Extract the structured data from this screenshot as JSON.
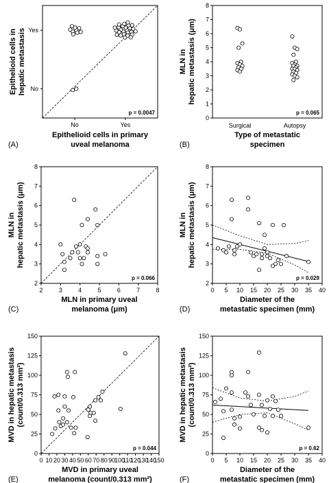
{
  "chart_data": [
    {
      "type": "scatter",
      "panel_label": "(A)",
      "xlabel": [
        "Epithelioid cells in primary",
        "uveal melanoma"
      ],
      "ylabel": [
        "Epithelioid cells in",
        "hepatic metastasis"
      ],
      "x_categories": [
        "No",
        "Yes"
      ],
      "y_categories": [
        "No",
        "Yes"
      ],
      "p_value": "p = 0.0047",
      "identity_line": true,
      "points": [
        {
          "x": "No",
          "y": "Yes",
          "count": 9
        },
        {
          "x": "No",
          "y": "No",
          "count": 2
        },
        {
          "x": "Yes",
          "y": "Yes",
          "count": 26
        }
      ]
    },
    {
      "type": "scatter",
      "panel_label": "(B)",
      "xlabel": [
        "Type of metastatic",
        "specimen"
      ],
      "ylabel": [
        "MLN in",
        "hepatic metastasis (μm)"
      ],
      "categories": [
        "Surgical",
        "Autopsy"
      ],
      "ylim": [
        0,
        8
      ],
      "yticks": [
        0,
        1,
        2,
        3,
        4,
        5,
        6,
        7,
        8
      ],
      "p_value": "p = 0.065",
      "series": [
        {
          "category": "Surgical",
          "values": [
            6.4,
            6.3,
            5.3,
            5.0,
            4.0,
            3.9,
            3.8,
            3.7,
            3.6,
            3.5,
            3.4,
            3.3
          ]
        },
        {
          "category": "Autopsy",
          "values": [
            5.8,
            5.0,
            4.9,
            4.5,
            4.0,
            3.9,
            3.8,
            3.7,
            3.7,
            3.6,
            3.5,
            3.5,
            3.4,
            3.3,
            3.2,
            3.1,
            3.0,
            2.9,
            2.7
          ]
        }
      ]
    },
    {
      "type": "scatter",
      "panel_label": "(C)",
      "xlabel": [
        "MLN in primary uveal",
        "melanoma (μm)"
      ],
      "ylabel": [
        "MLN in",
        "hepatic metastasis (μm)"
      ],
      "xlim": [
        2,
        8
      ],
      "ylim": [
        2,
        8
      ],
      "xticks": [
        2,
        3,
        4,
        5,
        6,
        7,
        8
      ],
      "yticks": [
        2,
        3,
        4,
        5,
        6,
        7,
        8
      ],
      "p_value": "p = 0.066",
      "identity_line": true,
      "points": [
        [
          3.7,
          6.3
        ],
        [
          4.8,
          5.8
        ],
        [
          4.4,
          5.3
        ],
        [
          4.1,
          5.0
        ],
        [
          4.9,
          5.0
        ],
        [
          3.0,
          4.0
        ],
        [
          4.0,
          4.0
        ],
        [
          3.8,
          3.9
        ],
        [
          4.3,
          3.9
        ],
        [
          4.4,
          3.8
        ],
        [
          3.6,
          3.6
        ],
        [
          3.9,
          3.6
        ],
        [
          4.4,
          3.6
        ],
        [
          3.1,
          3.5
        ],
        [
          5.3,
          3.5
        ],
        [
          4.9,
          3.4
        ],
        [
          3.5,
          3.3
        ],
        [
          4.0,
          3.3
        ],
        [
          4.2,
          3.3
        ],
        [
          3.2,
          3.1
        ],
        [
          4.1,
          3.0
        ],
        [
          4.9,
          3.0
        ],
        [
          3.2,
          2.7
        ]
      ]
    },
    {
      "type": "scatter",
      "panel_label": "(D)",
      "xlabel": [
        "Diameter of the",
        "metastatic specimen (mm)"
      ],
      "ylabel": [
        "MLN in",
        "hepatic metastasis (μm)"
      ],
      "xlim": [
        0,
        40
      ],
      "ylim": [
        2,
        8
      ],
      "xticks": [
        0,
        5,
        10,
        15,
        20,
        25,
        30,
        35,
        40
      ],
      "yticks": [
        2,
        3,
        4,
        5,
        6,
        7,
        8
      ],
      "p_value": "p = 0.029",
      "regression": {
        "intercept": 4.35,
        "slope": -0.035
      },
      "confidence_band": {
        "upper": [
          [
            0,
            5.0
          ],
          [
            10,
            4.45
          ],
          [
            20,
            4.0
          ],
          [
            30,
            4.05
          ],
          [
            35,
            4.2
          ]
        ],
        "lower": [
          [
            0,
            3.75
          ],
          [
            10,
            3.75
          ],
          [
            20,
            3.55
          ],
          [
            30,
            2.95
          ],
          [
            35,
            2.55
          ]
        ]
      },
      "points": [
        [
          2,
          3.8
        ],
        [
          4,
          3.7
        ],
        [
          5,
          3.6
        ],
        [
          6,
          3.9
        ],
        [
          7,
          6.3
        ],
        [
          7,
          5.3
        ],
        [
          8,
          3.7
        ],
        [
          8,
          3.5
        ],
        [
          9,
          3.9
        ],
        [
          10,
          4.0
        ],
        [
          13,
          6.4
        ],
        [
          13,
          5.8
        ],
        [
          14,
          3.6
        ],
        [
          15,
          3.4
        ],
        [
          16,
          3.5
        ],
        [
          17,
          5.1
        ],
        [
          17,
          2.7
        ],
        [
          18,
          3.5
        ],
        [
          18,
          3.3
        ],
        [
          19,
          4.5
        ],
        [
          19,
          3.8
        ],
        [
          20,
          3.6
        ],
        [
          20,
          3.4
        ],
        [
          21,
          3.3
        ],
        [
          22,
          5.0
        ],
        [
          22,
          2.9
        ],
        [
          23,
          3.0
        ],
        [
          24,
          3.2
        ],
        [
          25,
          3.0
        ],
        [
          26,
          5.0
        ],
        [
          27,
          3.4
        ],
        [
          35,
          3.1
        ]
      ]
    },
    {
      "type": "scatter",
      "panel_label": "(E)",
      "xlabel": [
        "MVD in primary uveal",
        "melanoma (count/0.313 mm²)"
      ],
      "ylabel": [
        "MVD in hepatic metastasis",
        "(count/0.313 mm²)"
      ],
      "xlim": [
        0,
        150
      ],
      "ylim": [
        0,
        150
      ],
      "xticks": [
        0,
        10,
        20,
        30,
        40,
        50,
        60,
        70,
        80,
        90,
        100,
        110,
        120,
        130,
        140,
        150
      ],
      "yticks": [
        0,
        25,
        50,
        75,
        100,
        125,
        150
      ],
      "p_value": "p = 0.044",
      "identity_line": true,
      "points": [
        [
          107,
          128
        ],
        [
          33,
          104
        ],
        [
          43,
          104
        ],
        [
          34,
          98
        ],
        [
          17,
          73
        ],
        [
          22,
          75
        ],
        [
          30,
          73
        ],
        [
          41,
          72
        ],
        [
          78,
          79
        ],
        [
          73,
          72
        ],
        [
          69,
          68
        ],
        [
          76,
          68
        ],
        [
          22,
          55
        ],
        [
          30,
          60
        ],
        [
          35,
          55
        ],
        [
          28,
          45
        ],
        [
          62,
          60
        ],
        [
          60,
          56
        ],
        [
          63,
          52
        ],
        [
          67,
          52
        ],
        [
          62,
          48
        ],
        [
          23,
          40
        ],
        [
          18,
          32
        ],
        [
          25,
          35
        ],
        [
          28,
          37
        ],
        [
          33,
          40
        ],
        [
          38,
          33
        ],
        [
          44,
          33
        ],
        [
          42,
          26
        ],
        [
          14,
          25
        ],
        [
          59,
          21
        ],
        [
          101,
          57
        ],
        [
          69,
          42
        ]
      ]
    },
    {
      "type": "scatter",
      "panel_label": "(F)",
      "xlabel": [
        "Diameter of the",
        "metastatic specimen (mm)"
      ],
      "ylabel": [
        "MVD in hepatic metastasis",
        "(count/0.313 mm²)"
      ],
      "xlim": [
        0,
        40
      ],
      "ylim": [
        0,
        150
      ],
      "xticks": [
        0,
        5,
        10,
        15,
        20,
        25,
        30,
        35,
        40
      ],
      "yticks": [
        0,
        25,
        50,
        75,
        100,
        125,
        150
      ],
      "p_value": "p = 0.62",
      "regression": {
        "intercept": 62,
        "slope": -0.2
      },
      "confidence_band": {
        "upper": [
          [
            0,
            84
          ],
          [
            10,
            71
          ],
          [
            20,
            67
          ],
          [
            30,
            73
          ],
          [
            35,
            80
          ]
        ],
        "lower": [
          [
            0,
            40
          ],
          [
            10,
            50
          ],
          [
            20,
            52
          ],
          [
            30,
            38
          ],
          [
            35,
            30
          ]
        ]
      },
      "points": [
        [
          1,
          66
        ],
        [
          3,
          70
        ],
        [
          4,
          20
        ],
        [
          4,
          54
        ],
        [
          5,
          83
        ],
        [
          7,
          100
        ],
        [
          7,
          104
        ],
        [
          7,
          78
        ],
        [
          7,
          56
        ],
        [
          8,
          45
        ],
        [
          8,
          37
        ],
        [
          10,
          32
        ],
        [
          10,
          47
        ],
        [
          12,
          78
        ],
        [
          13,
          104
        ],
        [
          13,
          73
        ],
        [
          14,
          62
        ],
        [
          15,
          50
        ],
        [
          17,
          129
        ],
        [
          17,
          75
        ],
        [
          17,
          33
        ],
        [
          18,
          30
        ],
        [
          18,
          62
        ],
        [
          19,
          48
        ],
        [
          20,
          68
        ],
        [
          20,
          27
        ],
        [
          21,
          57
        ],
        [
          22,
          73
        ],
        [
          23,
          67
        ],
        [
          22,
          48
        ],
        [
          24,
          56
        ],
        [
          25,
          48
        ],
        [
          35,
          33
        ]
      ]
    }
  ]
}
